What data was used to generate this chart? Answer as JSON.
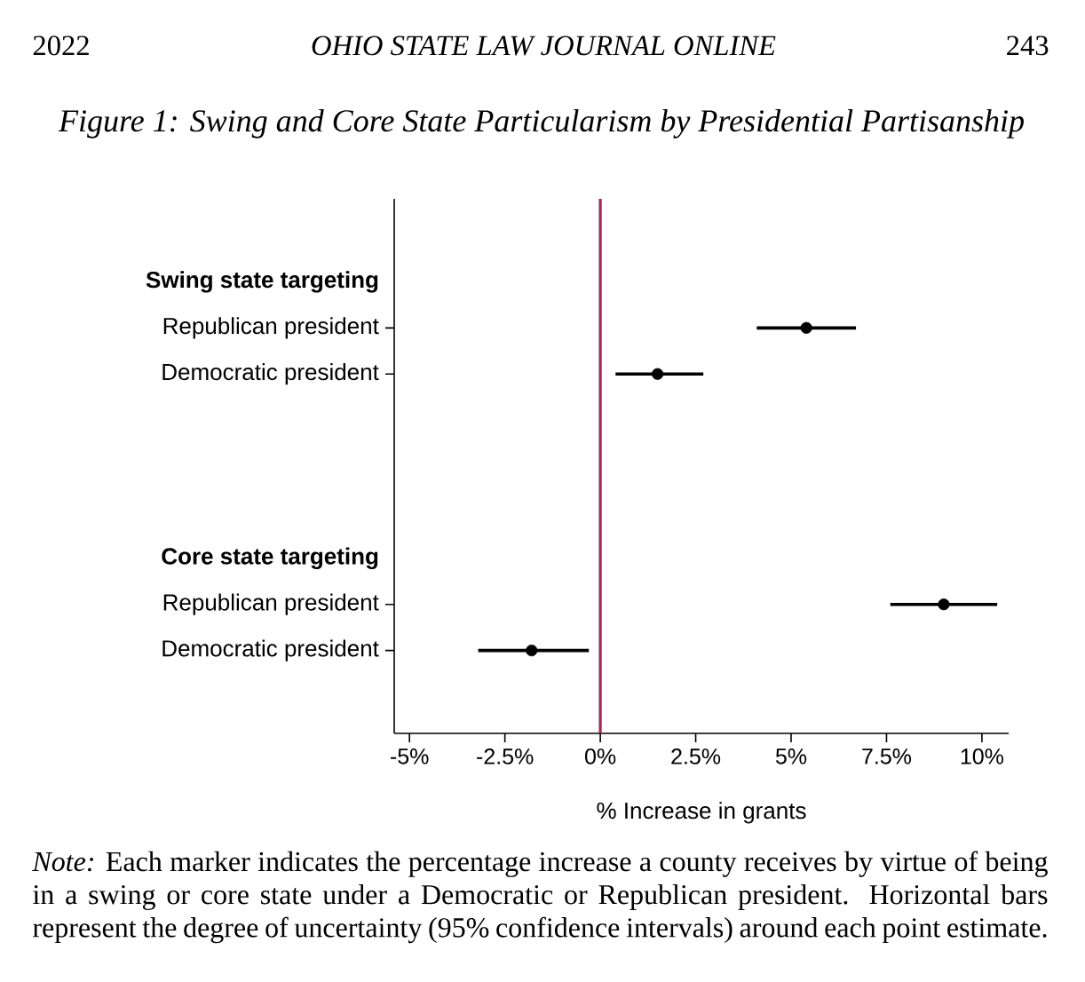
{
  "chart_data": {
    "type": "scatter",
    "orientation": "horizontal",
    "title": "Figure 1: Swing and Core State Particularism by Presidential Partisanship",
    "xlabel": "% Increase in grants",
    "categories": [
      "Swing state targeting",
      "Republican president",
      "Democratic president",
      null,
      null,
      null,
      "Core state targeting",
      "Republican president",
      "Democratic president"
    ],
    "values": [
      null,
      5.4,
      1.5,
      null,
      null,
      null,
      null,
      9.0,
      -1.8
    ],
    "errors": [
      null,
      [
        4.1,
        6.7
      ],
      [
        0.4,
        2.7
      ],
      null,
      null,
      null,
      null,
      [
        7.6,
        10.4
      ],
      [
        -3.2,
        -0.3
      ]
    ],
    "color": "#000000",
    "marker": "circle",
    "xlim": [
      -5.4,
      10.7
    ],
    "xticks": [
      {
        "value": -5,
        "label": "-5%"
      },
      {
        "value": -2.5,
        "label": "-2.5%"
      },
      {
        "value": 0,
        "label": "0%"
      },
      {
        "value": 2.5,
        "label": "2.5%"
      },
      {
        "value": 5,
        "label": "5%"
      },
      {
        "value": 7.5,
        "label": "7.5%"
      },
      {
        "value": 10,
        "label": "10%"
      }
    ],
    "ref_lines": [
      {
        "axis": "x",
        "value": 0,
        "color": "#9a2a5c"
      }
    ],
    "annotations": [
      "2022",
      "OHIO STATE LAW JOURNAL ONLINE",
      "243",
      "*Note:* Each marker indicates the percentage increase a county receives by virtue of being in a swing or core state under a Democratic or Republican president. Horizontal bars represent the degree of uncertainty (95% confidence intervals) around each point estimate."
    ]
  }
}
